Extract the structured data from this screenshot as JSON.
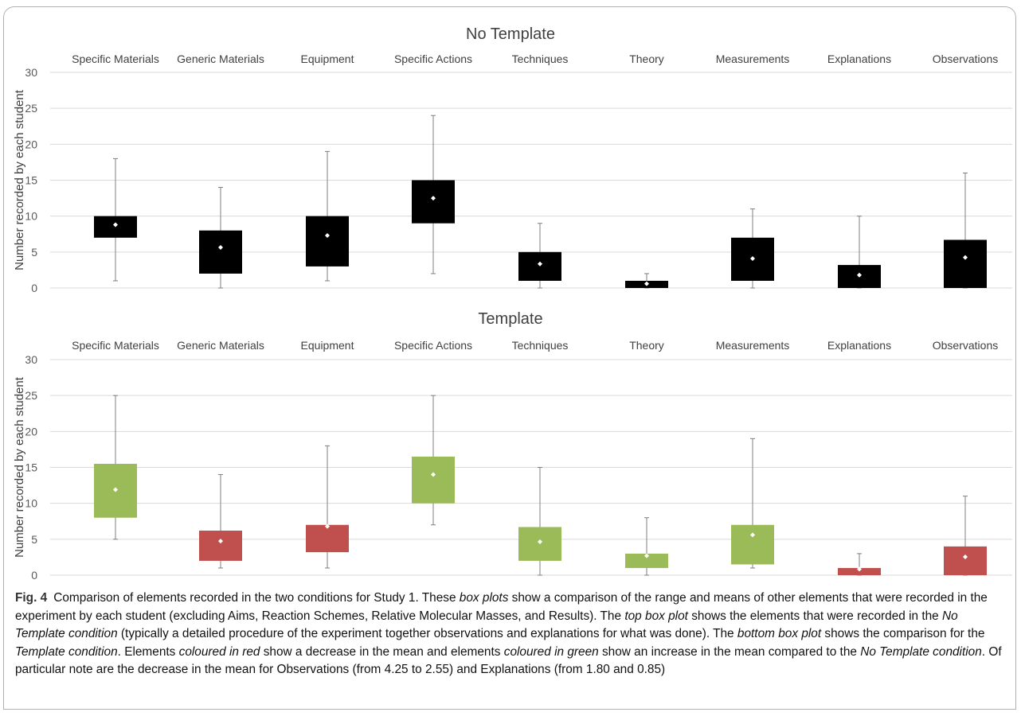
{
  "chart_data": [
    {
      "type": "box",
      "title": "No Template",
      "ylabel": "Number recorded by each student",
      "ylim": [
        0,
        30
      ],
      "yticks": [
        0,
        5,
        10,
        15,
        20,
        25,
        30
      ],
      "categories": [
        "Specific Materials",
        "Generic Materials",
        "Equipment",
        "Specific Actions",
        "Techniques",
        "Theory",
        "Measurements",
        "Explanations",
        "Observations"
      ],
      "min": [
        1,
        0,
        1,
        2,
        0,
        0,
        0,
        0,
        0
      ],
      "q1": [
        7,
        2,
        3,
        9,
        1,
        0,
        1,
        0,
        0
      ],
      "q3": [
        10,
        8,
        10,
        15,
        5,
        1,
        7,
        3.2,
        6.7
      ],
      "max": [
        18,
        14,
        19,
        24,
        9,
        2,
        11,
        10,
        16
      ],
      "mean": [
        8.8,
        5.65,
        7.3,
        12.5,
        3.35,
        0.6,
        4.1,
        1.8,
        4.25
      ],
      "colors": [
        "#000000",
        "#000000",
        "#000000",
        "#000000",
        "#000000",
        "#000000",
        "#000000",
        "#000000",
        "#000000"
      ]
    },
    {
      "type": "box",
      "title": "Template",
      "ylabel": "Number recorded by each student",
      "ylim": [
        0,
        30
      ],
      "yticks": [
        0,
        5,
        10,
        15,
        20,
        25,
        30
      ],
      "categories": [
        "Specific Materials",
        "Generic Materials",
        "Equipment",
        "Specific Actions",
        "Techniques",
        "Theory",
        "Measurements",
        "Explanations",
        "Observations"
      ],
      "min": [
        5,
        1,
        1,
        7,
        0,
        0,
        1,
        0,
        0
      ],
      "q1": [
        8,
        2,
        3.2,
        10,
        2,
        1,
        1.5,
        0,
        0
      ],
      "q3": [
        15.5,
        6.2,
        7,
        16.5,
        6.7,
        3,
        7,
        1,
        4
      ],
      "max": [
        25,
        14,
        18,
        25,
        15,
        8,
        19,
        3,
        11
      ],
      "mean": [
        11.9,
        4.75,
        6.8,
        14.0,
        4.65,
        2.7,
        5.6,
        0.85,
        2.55
      ],
      "colors": [
        "#9bbb59",
        "#c0504d",
        "#c0504d",
        "#9bbb59",
        "#9bbb59",
        "#9bbb59",
        "#9bbb59",
        "#c0504d",
        "#c0504d"
      ]
    }
  ],
  "caption": {
    "label": "Fig. 4",
    "parts": [
      {
        "t": "Comparison of elements recorded in the two conditions for Study 1. These "
      },
      {
        "t": "box plots",
        "i": true
      },
      {
        "t": " show a comparison of the range and means of other elements that were recorded in the experiment by each student (excluding Aims, Reaction Schemes, Relative Molecular Masses, and Results). The "
      },
      {
        "t": "top box plot",
        "i": true
      },
      {
        "t": " shows the elements that were recorded in the "
      },
      {
        "t": "No Template condition",
        "i": true
      },
      {
        "t": " (typically a detailed procedure of the experiment together observations and explanations for what was done). The "
      },
      {
        "t": "bottom box plot",
        "i": true
      },
      {
        "t": " shows the comparison for the "
      },
      {
        "t": "Template condition",
        "i": true
      },
      {
        "t": ". Elements "
      },
      {
        "t": "coloured in red",
        "i": true
      },
      {
        "t": " show a decrease in the mean and elements "
      },
      {
        "t": "coloured in green",
        "i": true
      },
      {
        "t": " show an increase in the mean compared to the "
      },
      {
        "t": "No Template condition",
        "i": true
      },
      {
        "t": ". Of particular note are the decrease in the mean for Observations (from 4.25 to 2.55) and Explanations (from 1.80 and 0.85)"
      }
    ]
  }
}
